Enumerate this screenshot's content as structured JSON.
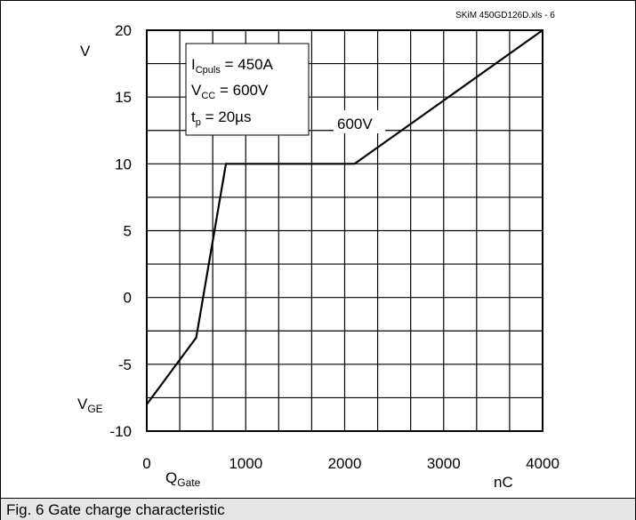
{
  "file_label": "SKiM 450GD126D.xls - 6",
  "caption": "Fig. 6 Gate charge characteristic",
  "chart_data": {
    "type": "line",
    "x_ticks": [
      "0",
      "1000",
      "2000",
      "3000",
      "4000"
    ],
    "y_ticks": [
      "20",
      "15",
      "10",
      "5",
      "0",
      "-5",
      "-10"
    ],
    "xlim": [
      0,
      4000
    ],
    "ylim": [
      -10,
      20
    ],
    "x_grid_step": 333.33,
    "y_grid_step": 2.5,
    "ylabel_unit": "V",
    "ylabel_name": "V",
    "ylabel_sub": "GE",
    "xlabel_name": "Q",
    "xlabel_sub": "Gate",
    "xlabel_unit": "nC",
    "series": [
      {
        "label": "600V",
        "points": [
          [
            0,
            -8
          ],
          [
            500,
            -3
          ],
          [
            800,
            10
          ],
          [
            2100,
            10
          ],
          [
            4000,
            20
          ]
        ]
      }
    ],
    "conditions": [
      {
        "main": "I",
        "sub": "Cpuls",
        "rest": " = 450A"
      },
      {
        "main": "V",
        "sub": "CC",
        "rest": " = 600V"
      },
      {
        "main": "t",
        "sub": "p",
        "rest": " = 20µs"
      }
    ]
  }
}
